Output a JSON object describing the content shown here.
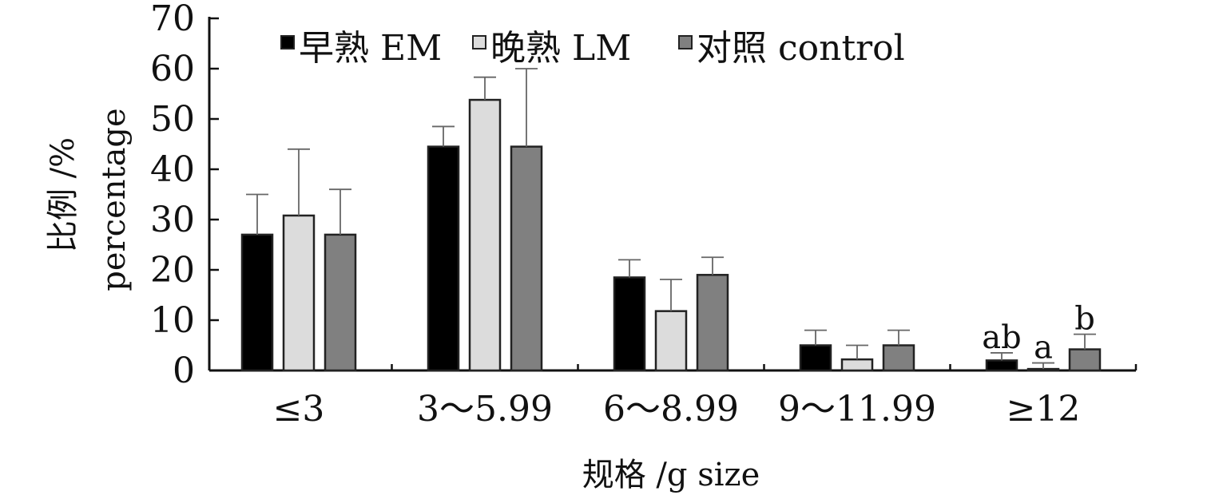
{
  "chart_data": {
    "type": "bar",
    "categories": [
      "≤3",
      "3～5.99",
      "6～8.99",
      "9～11.99",
      "≥12"
    ],
    "series": [
      {
        "name": "早熟 EM",
        "color": "#000000",
        "values": [
          27,
          44.5,
          18.5,
          5,
          2
        ],
        "errors": [
          8,
          4,
          3.5,
          3,
          1.5
        ]
      },
      {
        "name": "晚熟 LM",
        "color": "#dcdcdc",
        "values": [
          30.8,
          53.8,
          11.8,
          2.2,
          0.3
        ],
        "errors": [
          13.2,
          4.5,
          6.3,
          2.8,
          1.2
        ]
      },
      {
        "name": "对照 control",
        "color": "#808080",
        "values": [
          27,
          44.5,
          19,
          5,
          4.2
        ],
        "errors": [
          9,
          15.5,
          3.5,
          3,
          3
        ]
      }
    ],
    "annotations": [
      {
        "category": "≥12",
        "series": "早熟 EM",
        "text": "ab"
      },
      {
        "category": "≥12",
        "series": "晚熟 LM",
        "text": "a"
      },
      {
        "category": "≥12",
        "series": "对照 control",
        "text": "b"
      }
    ],
    "ylim": [
      0,
      70
    ],
    "yticks": [
      0,
      10,
      20,
      30,
      40,
      50,
      60,
      70
    ],
    "ylabel": [
      "比例 /%",
      "percentage"
    ],
    "xlabel": "规格 /g size",
    "legend_position": "top",
    "grid": false
  }
}
